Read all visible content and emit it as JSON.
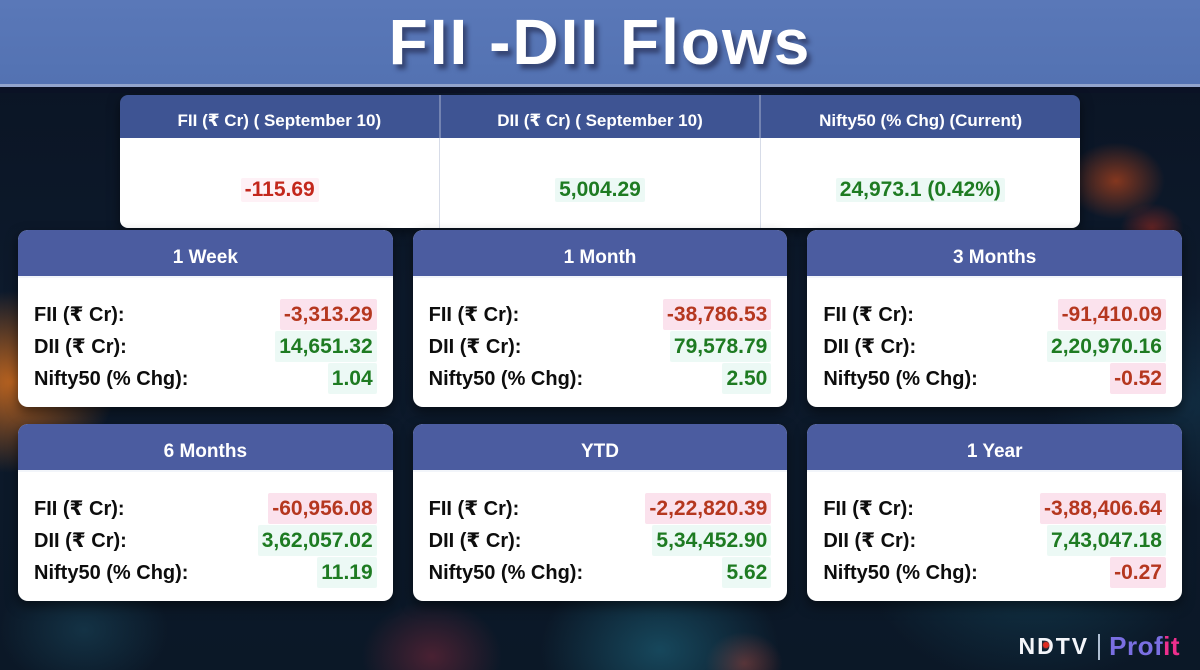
{
  "title": "FII -DII Flows",
  "summary_table": {
    "columns": [
      {
        "header": "FII (₹ Cr) ( September 10)",
        "value": "-115.69",
        "trend": "negative"
      },
      {
        "header": "DII (₹ Cr) ( September 10)",
        "value": "5,004.29",
        "trend": "positive"
      },
      {
        "header": "Nifty50 (% Chg) (Current)",
        "value": "24,973.1 (0.42%)",
        "trend": "positive"
      }
    ]
  },
  "row_labels": {
    "fii": "FII (₹ Cr):",
    "dii": "DII (₹ Cr):",
    "nifty": "Nifty50 (% Chg):"
  },
  "cards": [
    {
      "period": "1 Week",
      "fii": "-3,313.29",
      "dii": "14,651.32",
      "nifty": "1.04"
    },
    {
      "period": "1 Month",
      "fii": "-38,786.53",
      "dii": "79,578.79",
      "nifty": "2.50"
    },
    {
      "period": "3 Months",
      "fii": "-91,410.09",
      "dii": "2,20,970.16",
      "nifty": "-0.52"
    },
    {
      "period": "6 Months",
      "fii": "-60,956.08",
      "dii": "3,62,057.02",
      "nifty": "11.19"
    },
    {
      "period": "YTD",
      "fii": "-2,22,820.39",
      "dii": "5,34,452.90",
      "nifty": "5.62"
    },
    {
      "period": "1 Year",
      "fii": "-3,88,406.64",
      "dii": "7,43,047.18",
      "nifty": "-0.27"
    }
  ],
  "logo": {
    "ndtv": "NDTV",
    "separator": "",
    "profit_part1": "Prof",
    "profit_part2": "it"
  },
  "colors": {
    "banner_blue": "#5573b4",
    "table_header_blue": "#3e5493",
    "card_header_blue": "#45579d",
    "positive_green": "#1e7b22",
    "negative_red": "#b5371f",
    "ndtv_dot_red": "#e02b20",
    "profit_gradient_start": "#7a6fe2",
    "profit_gradient_end": "#ed2f8d"
  },
  "chart_data": {
    "type": "table",
    "title": "FII -DII Flows",
    "as_of": "September 10",
    "snapshot": {
      "fii_cr": -115.69,
      "dii_cr": 5004.29,
      "nifty50_current": 24973.1,
      "nifty50_chg_pct": 0.42
    },
    "row_fields": [
      "FII (₹ Cr)",
      "DII (₹ Cr)",
      "Nifty50 (% Chg)"
    ],
    "periods": [
      {
        "period": "1 Week",
        "fii_cr": -3313.29,
        "dii_cr": 14651.32,
        "nifty_chg_pct": 1.04
      },
      {
        "period": "1 Month",
        "fii_cr": -38786.53,
        "dii_cr": 79578.79,
        "nifty_chg_pct": 2.5
      },
      {
        "period": "3 Months",
        "fii_cr": -91410.09,
        "dii_cr": 220970.16,
        "nifty_chg_pct": -0.52
      },
      {
        "period": "6 Months",
        "fii_cr": -60956.08,
        "dii_cr": 362057.02,
        "nifty_chg_pct": 11.19
      },
      {
        "period": "YTD",
        "fii_cr": -222820.39,
        "dii_cr": 534452.9,
        "nifty_chg_pct": 5.62
      },
      {
        "period": "1 Year",
        "fii_cr": -388406.64,
        "dii_cr": 743047.18,
        "nifty_chg_pct": -0.27
      }
    ]
  }
}
